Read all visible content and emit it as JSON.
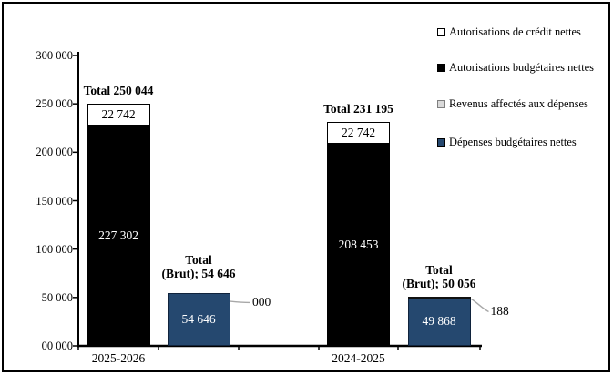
{
  "chart_data": {
    "type": "bar",
    "subtype": "grouped-stacked",
    "title": "",
    "xlabel": "",
    "ylabel": "",
    "categories": [
      "2025-2026",
      "2024-2025"
    ],
    "ylim": [
      0,
      300000
    ],
    "y_tick_labels": [
      "300 000",
      "250 000",
      "200 000",
      "150 000",
      "100 000",
      "50 000",
      "00 000"
    ],
    "grid": false,
    "legend_position": "top-right",
    "legend": [
      {
        "name": "autorisations-credit",
        "label": "Autorisations de crédit nettes",
        "swatch_fill": "#FFFFFF",
        "swatch_border": "#000000"
      },
      {
        "name": "autorisations-budgetaires",
        "label": "Autorisations budgétaires nettes",
        "swatch_fill": "#000000",
        "swatch_border": "#000000"
      },
      {
        "name": "revenus-affectes",
        "label": "Revenus affectés aux dépenses",
        "swatch_fill": "#D9D9D9",
        "swatch_border": "#7F7F7F"
      },
      {
        "name": "depenses-budgetaires",
        "label": "Dépenses budgétaires nettes",
        "swatch_fill": "#25486F",
        "swatch_border": "#000000"
      }
    ],
    "series": [
      {
        "name": "Autorisations budgétaires nettes",
        "values": [
          227302,
          208453
        ]
      },
      {
        "name": "Autorisations de crédit nettes",
        "values": [
          22742,
          22742
        ]
      },
      {
        "name": "Dépenses budgétaires nettes",
        "values": [
          54646,
          49868
        ]
      },
      {
        "name": "Revenus affectés aux dépenses",
        "values": [
          0,
          188
        ]
      }
    ],
    "groups": [
      {
        "category": "2025-2026",
        "authorizations_total_label": "Total 250 044",
        "budgetary_value": 227302,
        "budgetary_label": "227 302",
        "credit_value": 22742,
        "credit_label": "22 742",
        "gross_total_label": "Total\n(Brut); 54 646",
        "net_expense_value": 54646,
        "net_expense_label": "54 646",
        "revenue_value": 0,
        "revenue_callout": "000"
      },
      {
        "category": "2024-2025",
        "authorizations_total_label": "Total 231 195",
        "budgetary_value": 208453,
        "budgetary_label": "208 453",
        "credit_value": 22742,
        "credit_label": "22 742",
        "gross_total_label": "Total\n(Brut); 50 056",
        "net_expense_value": 49868,
        "net_expense_label": "49 868",
        "revenue_value": 188,
        "revenue_callout": "188"
      }
    ]
  },
  "colors": {
    "bar_black": "#000000",
    "bar_white": "#FFFFFF",
    "bar_blue": "#25486F",
    "bar_blue_border": "#10233C",
    "revenue_edge": "#111111",
    "axis": "#000000",
    "leader_line": "#A8A8A8",
    "text": "#000000"
  }
}
